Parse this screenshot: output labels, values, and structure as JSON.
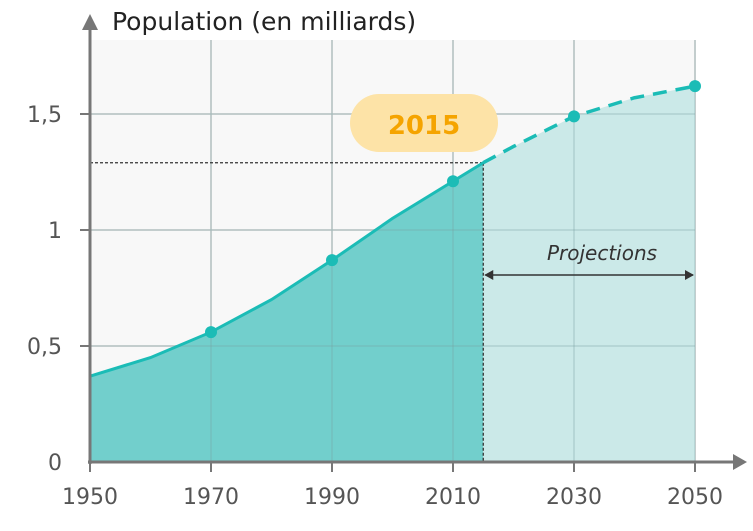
{
  "chart_data": {
    "type": "area",
    "title": "Population (en milliards)",
    "xlabel": "",
    "ylabel": "Population (en milliards)",
    "x_ticks": [
      "1950",
      "1970",
      "1990",
      "2010",
      "2030",
      "2050"
    ],
    "y_ticks": [
      "0",
      "0,5",
      "1",
      "1,5"
    ],
    "xlim": [
      1950,
      2050
    ],
    "ylim": [
      0,
      1.75
    ],
    "grid": true,
    "series": [
      {
        "kind": "observed",
        "x": [
          1950,
          1960,
          1970,
          1980,
          1990,
          2000,
          2010,
          2015
        ],
        "y": [
          0.37,
          0.45,
          0.56,
          0.7,
          0.87,
          1.05,
          1.21,
          1.29
        ]
      },
      {
        "kind": "projection",
        "x": [
          2015,
          2020,
          2030,
          2040,
          2050
        ],
        "y": [
          1.29,
          1.36,
          1.49,
          1.57,
          1.62
        ]
      }
    ],
    "markers": {
      "x": [
        1970,
        1990,
        2010,
        2030,
        2050
      ],
      "y": [
        0.56,
        0.87,
        1.21,
        1.49,
        1.62
      ]
    },
    "annotations": {
      "year_label": "2015",
      "year": 2015,
      "value": 1.29,
      "projection_label": "Projections"
    },
    "colors": {
      "line": "#1bbcb6",
      "observed_fill": "#72cfcc",
      "projection_fill": "#cbe9e8",
      "badge_bg": "#fde3a7",
      "badge_text": "#f5a400",
      "plot_bg": "#f8f8f8",
      "grid": "#dddddd"
    }
  }
}
